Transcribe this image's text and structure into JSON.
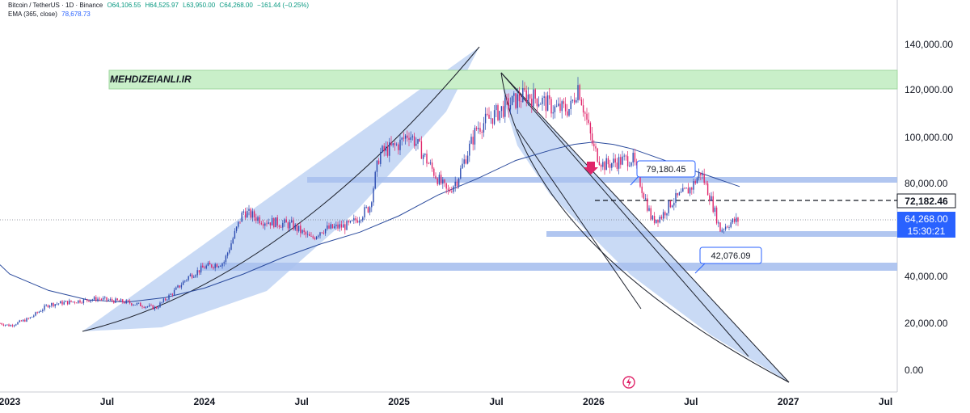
{
  "header": {
    "symbol": "Bitcoin / TetherUS · 1D · Binance",
    "ohlc": [
      "O64,106.55",
      "H64,525.97",
      "L63,950.00",
      "C64,268.00",
      "−161.44 (−0.25%)"
    ],
    "ema_label": "EMA (365, close)",
    "ema_value": "78,678.73"
  },
  "watermark": "MEHDIZEIANLI.IR",
  "colors": {
    "candle_up": "#2b4bb0",
    "candle_down": "#e0256a",
    "zone_blue": "#b7cdf2",
    "zone_green": "#c9efc9",
    "ema_line": "#2a4a9c",
    "last_price": "#2962ff"
  },
  "annotations": {
    "callout_upper": "79,180.45",
    "callout_lower": "42,076.09",
    "dashed_level": "72,182.46",
    "last_price": "64,268.00",
    "countdown": "15:30:21"
  },
  "chart_data": {
    "type": "line",
    "title": "",
    "xlabel": "",
    "ylabel": "",
    "y_tick_labels": [
      "140,000.00",
      "120,000.00",
      "100,000.00",
      "80,000.00",
      "40,000.00",
      "20,000.00",
      "0.00"
    ],
    "x_tick_labels": [
      "2023",
      "Jul",
      "2024",
      "Jul",
      "2025",
      "Jul",
      "2026",
      "Jul",
      "2027",
      "Jul"
    ],
    "ylim": [
      -5000,
      150000
    ],
    "xlim": [
      2022.95,
      2027.56
    ],
    "grid": false,
    "series": [
      {
        "kind": "price",
        "x": [
          2022.95,
          2023.0,
          2023.1,
          2023.2,
          2023.3,
          2023.45,
          2023.6,
          2023.75,
          2023.85,
          2023.92,
          2024.0,
          2024.1,
          2024.2,
          2024.3,
          2024.45,
          2024.55,
          2024.6,
          2024.75,
          2024.85,
          2024.9,
          2025.0,
          2025.05,
          2025.1,
          2025.2,
          2025.25,
          2025.3,
          2025.4,
          2025.5,
          2025.55,
          2025.65,
          2025.72,
          2025.8,
          2025.88,
          2025.92,
          2026.0,
          2026.05,
          2026.1,
          2026.15,
          2026.2,
          2026.3,
          2026.35,
          2026.4,
          2026.5,
          2026.55,
          2026.6,
          2026.65,
          2026.7,
          2026.75
        ],
        "y": [
          20000,
          19000,
          22000,
          28000,
          29000,
          30500,
          29000,
          26500,
          34000,
          40000,
          44000,
          46000,
          68000,
          64000,
          62000,
          56000,
          60000,
          62000,
          70000,
          93000,
          97000,
          102000,
          96000,
          82000,
          76000,
          82000,
          104000,
          110000,
          113000,
          118000,
          116000,
          112000,
          112000,
          122000,
          95000,
          88000,
          89000,
          90000,
          91000,
          64000,
          66000,
          72000,
          78000,
          85000,
          74000,
          60000,
          63000,
          64268
        ]
      },
      {
        "kind": "ema",
        "name": "EMA (365, close)",
        "x": [
          2022.95,
          2023.0,
          2023.2,
          2023.4,
          2023.6,
          2023.8,
          2024.0,
          2024.2,
          2024.4,
          2024.6,
          2024.8,
          2025.0,
          2025.2,
          2025.4,
          2025.6,
          2025.8,
          2025.9,
          2026.0,
          2026.1,
          2026.2,
          2026.3,
          2026.4,
          2026.5,
          2026.6,
          2026.75
        ],
        "y": [
          45000,
          41000,
          34000,
          30000,
          29000,
          31000,
          35000,
          41000,
          48000,
          54000,
          59000,
          66000,
          75000,
          82000,
          90000,
          95000,
          97000,
          98000,
          97000,
          95000,
          92000,
          89000,
          86000,
          83000,
          78678.73
        ]
      }
    ],
    "levels": [
      79180.45,
      72182.46,
      64268.0,
      42076.09
    ]
  }
}
